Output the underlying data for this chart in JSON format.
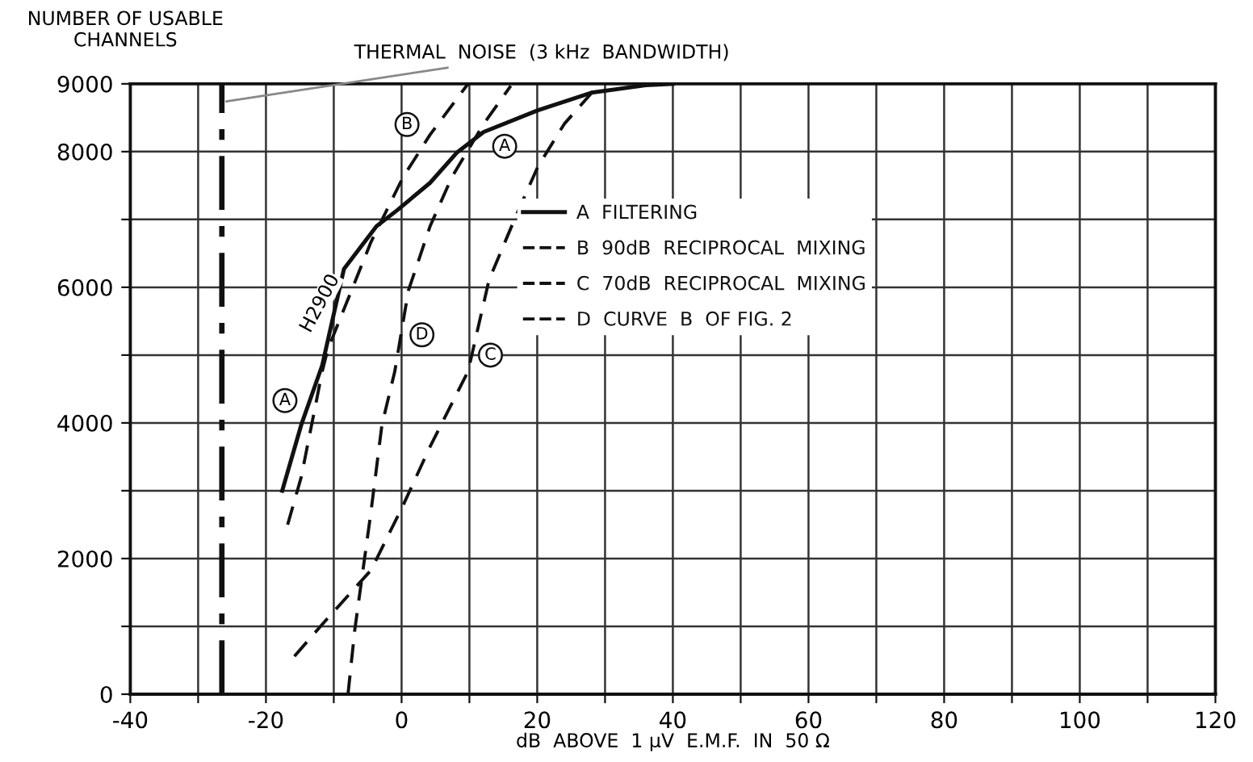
{
  "chart_data": {
    "type": "line",
    "xlabel": "dB  ABOVE  1 μV  E.M.F.  IN  50 Ω",
    "ylabel": "NUMBER OF USABLE\nCHANNELS",
    "xlim": [
      -40,
      120
    ],
    "xticks": [
      -40,
      {
        "value": -30,
        "label": null
      },
      -20,
      {
        "value": -10,
        "label": null
      },
      0,
      {
        "value": 10,
        "label": null
      },
      20,
      {
        "value": 30,
        "label": null
      },
      40,
      {
        "value": 50,
        "label": null
      },
      60,
      {
        "value": 70,
        "label": null
      },
      80,
      {
        "value": 90,
        "label": null
      },
      100,
      {
        "value": 110,
        "label": null
      },
      120
    ],
    "ylim": [
      0,
      9000
    ],
    "yticks": [
      0,
      {
        "value": 1000,
        "label": null
      },
      2000,
      {
        "value": 3000,
        "label": null
      },
      4000,
      {
        "value": 5000,
        "label": null
      },
      6000,
      {
        "value": 7000,
        "label": null
      },
      8000,
      9000
    ],
    "grid": true,
    "legend": "center",
    "marker": "none",
    "series": [
      {
        "name": "A  FILTERING",
        "color": "#111111",
        "line_style": "solid",
        "x": [
          -17.6,
          -14.8,
          -11.7,
          -8.5,
          -3.7,
          -0.6,
          4.2,
          8.2,
          12.1,
          20.1,
          28,
          36,
          40
        ],
        "values": [
          3000,
          3970,
          4850,
          6270,
          6900,
          7140,
          7540,
          7990,
          8290,
          8610,
          8870,
          8980,
          9000
        ]
      },
      {
        "name": "B  90dB  RECIPROCAL  MIXING",
        "color": "#111111",
        "line_style": "dashed",
        "x": [
          -16.8,
          -14.8,
          -11.7,
          -10.9,
          -4.5,
          0.2,
          4.2,
          9.8
        ],
        "values": [
          2500,
          3200,
          4760,
          5080,
          6670,
          7620,
          8250,
          9000
        ]
      },
      {
        "name": "C  70dB  RECIPROCAL  MIXING",
        "color": "#111111",
        "line_style": "dashed",
        "x": [
          -15.8,
          -11.7,
          -4.5,
          0.2,
          4.2,
          9.8,
          12.9,
          16.9,
          20.1,
          24,
          29.2
        ],
        "values": [
          560,
          1030,
          1830,
          2780,
          3650,
          4760,
          6110,
          7060,
          7780,
          8410,
          9000
        ]
      },
      {
        "name": "D  CURVE  B  OF FIG. 2",
        "color": "#111111",
        "line_style": "dashed",
        "x": [
          -7.9,
          -6.9,
          -4.5,
          -2.9,
          -1.0,
          1.0,
          4.2,
          7.4,
          12.1,
          16.1
        ],
        "values": [
          0,
          950,
          2700,
          3970,
          4760,
          5950,
          6900,
          7620,
          8410,
          8970
        ]
      }
    ],
    "ref_lines": [
      {
        "axis": "x",
        "value": -26.5,
        "label": "THERMAL  NOISE  (3 kHz  BANDWIDTH)",
        "color": "#111111",
        "line_style": "dashed"
      }
    ],
    "annotations": [
      {
        "text": "A",
        "x": -17.2,
        "y": 4330
      },
      {
        "text": "A",
        "x": 15.2,
        "y": 8080
      },
      {
        "text": "B",
        "x": 0.8,
        "y": 8400
      },
      {
        "text": "C",
        "x": 13.1,
        "y": 5000
      },
      {
        "text": "D",
        "x": 3.0,
        "y": 5300
      },
      "H2900"
    ]
  }
}
